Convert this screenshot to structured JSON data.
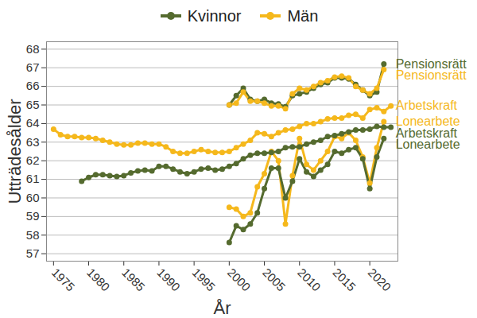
{
  "chart_data": {
    "type": "line",
    "x_label": "År",
    "y_label": "Utträdesålder",
    "xlim": [
      1974,
      2024
    ],
    "xticks": [
      1975,
      1980,
      1985,
      1990,
      1995,
      2000,
      2005,
      2010,
      2015,
      2020
    ],
    "ylim": [
      56.6,
      68.4
    ],
    "yticks": [
      57,
      58,
      59,
      60,
      61,
      62,
      63,
      64,
      65,
      66,
      67,
      68
    ],
    "grid": true,
    "legend": "top",
    "marker": "circle",
    "series": [
      {
        "name": "Pensionsrätt",
        "group": "Kvinnor",
        "color": "#556b2f",
        "x": [
          2000,
          2001,
          2002,
          2003,
          2004,
          2005,
          2006,
          2007,
          2008,
          2009,
          2010,
          2011,
          2012,
          2013,
          2014,
          2015,
          2016,
          2017,
          2018,
          2019,
          2020,
          2021,
          2022
        ],
        "values": [
          65.0,
          65.5,
          65.9,
          65.3,
          65.2,
          65.3,
          65.1,
          65.05,
          64.9,
          65.5,
          65.6,
          65.7,
          65.9,
          66.1,
          66.2,
          66.45,
          66.45,
          66.4,
          66.1,
          65.8,
          65.5,
          65.7,
          67.2
        ]
      },
      {
        "name": "Pensionsrätt",
        "group": "Män",
        "color": "#f5b81c",
        "x": [
          2000,
          2001,
          2002,
          2003,
          2004,
          2005,
          2006,
          2007,
          2008,
          2009,
          2010,
          2011,
          2012,
          2013,
          2014,
          2015,
          2016,
          2017,
          2018,
          2019,
          2020,
          2021,
          2022
        ],
        "values": [
          65.0,
          65.1,
          65.7,
          65.2,
          65.2,
          65.1,
          64.95,
          64.95,
          64.8,
          65.6,
          65.9,
          65.8,
          66.0,
          66.2,
          66.3,
          66.5,
          66.55,
          66.45,
          66.0,
          65.8,
          65.6,
          65.9,
          66.9
        ]
      },
      {
        "name": "Arbetskraft",
        "group": "Män",
        "color": "#f5b81c",
        "x": [
          1975,
          1976,
          1977,
          1978,
          1979,
          1980,
          1981,
          1982,
          1983,
          1984,
          1985,
          1986,
          1987,
          1988,
          1989,
          1990,
          1991,
          1992,
          1993,
          1994,
          1995,
          1996,
          1997,
          1998,
          1999,
          2000,
          2001,
          2002,
          2003,
          2004,
          2005,
          2006,
          2007,
          2008,
          2009,
          2010,
          2011,
          2012,
          2013,
          2014,
          2015,
          2016,
          2017,
          2018,
          2019,
          2020,
          2021,
          2022,
          2023
        ],
        "values": [
          63.7,
          63.4,
          63.3,
          63.3,
          63.25,
          63.25,
          63.2,
          63.1,
          63.0,
          62.9,
          62.85,
          62.85,
          62.95,
          62.95,
          62.9,
          62.9,
          62.75,
          62.5,
          62.4,
          62.4,
          62.5,
          62.6,
          62.5,
          62.45,
          62.45,
          62.5,
          62.7,
          62.9,
          63.1,
          63.5,
          63.45,
          63.3,
          63.5,
          63.65,
          63.7,
          63.85,
          64.0,
          64.0,
          64.1,
          64.25,
          64.3,
          64.3,
          64.45,
          64.5,
          64.3,
          64.75,
          64.85,
          64.65,
          64.95
        ]
      },
      {
        "name": "Lonearbete",
        "group": "Män",
        "color": "#f5b81c",
        "x": [
          2000,
          2001,
          2002,
          2003,
          2004,
          2005,
          2006,
          2007,
          2008,
          2009,
          2010,
          2011,
          2012,
          2013,
          2014,
          2015,
          2016,
          2017,
          2018,
          2019,
          2020,
          2021,
          2022
        ],
        "values": [
          59.5,
          59.4,
          59.0,
          59.2,
          60.6,
          61.3,
          62.5,
          62.0,
          58.6,
          61.2,
          63.2,
          61.8,
          61.5,
          62.0,
          62.5,
          63.3,
          63.2,
          63.5,
          63.1,
          62.2,
          60.8,
          62.7,
          64.1
        ]
      },
      {
        "name": "Arbetskraft",
        "group": "Kvinnor",
        "color": "#556b2f",
        "x": [
          1979,
          1980,
          1981,
          1982,
          1983,
          1984,
          1985,
          1986,
          1987,
          1988,
          1989,
          1990,
          1991,
          1992,
          1993,
          1994,
          1995,
          1996,
          1997,
          1998,
          1999,
          2000,
          2001,
          2002,
          2003,
          2004,
          2005,
          2006,
          2007,
          2008,
          2009,
          2010,
          2011,
          2012,
          2013,
          2014,
          2015,
          2016,
          2017,
          2018,
          2019,
          2020,
          2021,
          2022,
          2023
        ],
        "values": [
          60.9,
          61.1,
          61.25,
          61.25,
          61.2,
          61.15,
          61.2,
          61.35,
          61.45,
          61.5,
          61.45,
          61.7,
          61.7,
          61.55,
          61.4,
          61.3,
          61.4,
          61.55,
          61.6,
          61.5,
          61.55,
          61.7,
          61.85,
          62.1,
          62.3,
          62.4,
          62.4,
          62.45,
          62.5,
          62.7,
          62.75,
          62.75,
          62.9,
          63.0,
          63.1,
          63.3,
          63.35,
          63.45,
          63.55,
          63.65,
          63.65,
          63.7,
          63.85,
          63.8,
          63.8
        ]
      },
      {
        "name": "Lonearbete",
        "group": "Kvinnor",
        "color": "#556b2f",
        "x": [
          2000,
          2001,
          2002,
          2003,
          2004,
          2005,
          2006,
          2007,
          2008,
          2009,
          2010,
          2011,
          2012,
          2013,
          2014,
          2015,
          2016,
          2017,
          2018,
          2019,
          2020,
          2021,
          2022
        ],
        "values": [
          57.6,
          58.5,
          58.3,
          58.6,
          59.2,
          60.5,
          61.6,
          61.6,
          60.0,
          60.9,
          62.1,
          61.4,
          61.15,
          61.5,
          61.8,
          62.5,
          62.4,
          62.6,
          62.7,
          62.1,
          60.5,
          62.2,
          63.2
        ]
      }
    ]
  }
}
